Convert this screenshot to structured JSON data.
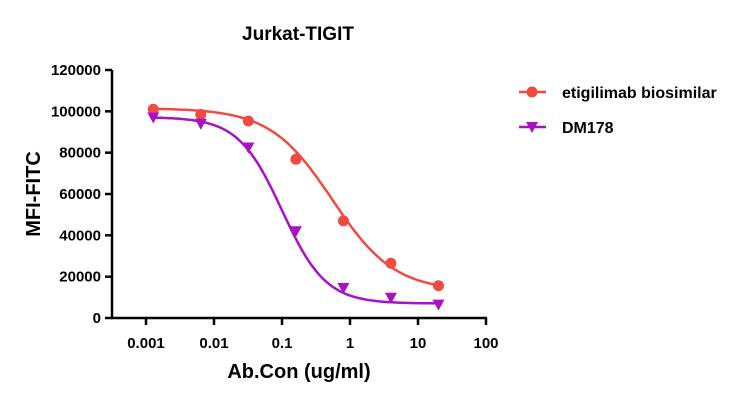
{
  "chart_data": {
    "type": "scatter",
    "title": "Jurkat-TIGIT",
    "xlabel": "Ab.Con (ug/ml)",
    "ylabel": "MFI-FITC",
    "xscale": "log",
    "xlim": [
      0.001,
      100
    ],
    "ylim": [
      0,
      120000
    ],
    "xticks": [
      "0.001",
      "0.01",
      "0.1",
      "1",
      "10",
      "100"
    ],
    "xtick_values": [
      0.001,
      0.01,
      0.1,
      1,
      10,
      100
    ],
    "yticks": [
      "0",
      "20000",
      "40000",
      "60000",
      "80000",
      "100000",
      "120000"
    ],
    "ytick_values": [
      0,
      20000,
      40000,
      60000,
      80000,
      100000,
      120000
    ],
    "grid": false,
    "legend_position": "right",
    "series": [
      {
        "name": "etigilimab biosimilar",
        "color": "#f04a42",
        "marker": "circle",
        "x": [
          0.00128,
          0.0064,
          0.032,
          0.16,
          0.8,
          4,
          20
        ],
        "y": [
          101000,
          98500,
          95300,
          76800,
          47000,
          26500,
          15600
        ]
      },
      {
        "name": "DM178",
        "color": "#a811c4",
        "marker": "triangle-down",
        "x": [
          0.00128,
          0.0064,
          0.032,
          0.16,
          0.8,
          4,
          20
        ],
        "y": [
          97000,
          94000,
          82500,
          42000,
          14500,
          9800,
          6500
        ]
      }
    ]
  }
}
